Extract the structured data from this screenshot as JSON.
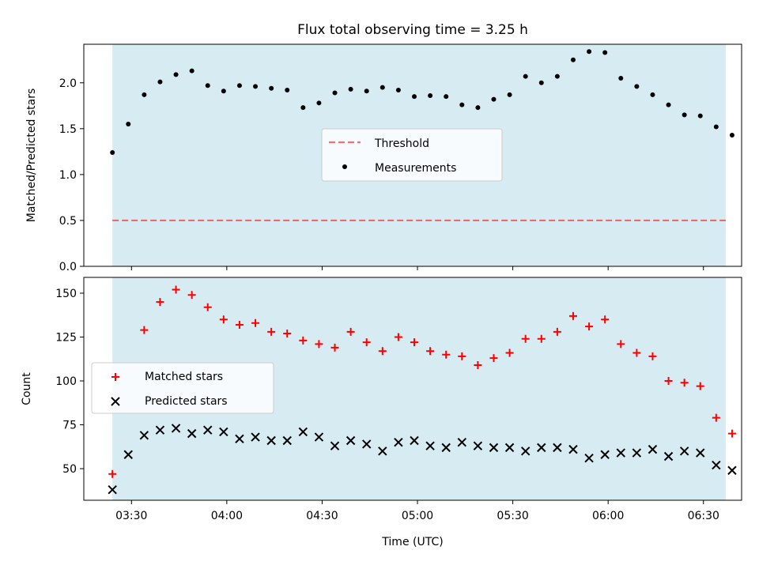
{
  "title": "Flux total observing time = 3.25 h",
  "colors": {
    "shade": "#add8e6",
    "threshold": "#ff0000",
    "measurements": "#000000",
    "matched": "#ff0000",
    "predicted": "#000000"
  },
  "x_tick_labels": [
    "03:30",
    "04:00",
    "04:30",
    "05:00",
    "05:30",
    "06:00",
    "06:30"
  ],
  "xlabel": "Time (UTC)",
  "chart_data": [
    {
      "type": "scatter",
      "ylabel": "Matched/Predicted stars",
      "ylim": [
        0,
        2.42
      ],
      "y_ticks": [
        "0.0",
        "0.5",
        "1.0",
        "1.5",
        "2.0"
      ],
      "y_tick_values": [
        0,
        0.5,
        1.0,
        1.5,
        2.0
      ],
      "xlim": [
        "03:15",
        "06:42"
      ],
      "shaded_span": [
        "03:24",
        "06:37"
      ],
      "legend_position": "center",
      "series": [
        {
          "name": "Threshold",
          "style": "dashed-line",
          "x": [
            "03:24",
            "06:37"
          ],
          "values": [
            0.5,
            0.5
          ]
        },
        {
          "name": "Measurements",
          "style": "dot",
          "x": [
            "03:24",
            "03:29",
            "03:34",
            "03:39",
            "03:44",
            "03:49",
            "03:54",
            "03:59",
            "04:04",
            "04:09",
            "04:14",
            "04:19",
            "04:24",
            "04:29",
            "04:34",
            "04:39",
            "04:44",
            "04:49",
            "04:54",
            "04:59",
            "05:04",
            "05:09",
            "05:14",
            "05:19",
            "05:24",
            "05:29",
            "05:34",
            "05:39",
            "05:44",
            "05:49",
            "05:54",
            "05:59",
            "06:04",
            "06:09",
            "06:14",
            "06:19",
            "06:24",
            "06:29",
            "06:34",
            "06:39"
          ],
          "values": [
            1.24,
            1.55,
            1.87,
            2.01,
            2.09,
            2.13,
            1.97,
            1.91,
            1.97,
            1.96,
            1.94,
            1.92,
            1.73,
            1.78,
            1.89,
            1.93,
            1.91,
            1.95,
            1.92,
            1.85,
            1.86,
            1.85,
            1.76,
            1.73,
            1.82,
            1.87,
            2.07,
            2.0,
            2.07,
            2.25,
            2.34,
            2.33,
            2.05,
            1.96,
            1.87,
            1.76,
            1.65,
            1.64,
            1.52,
            1.43
          ]
        }
      ]
    },
    {
      "type": "scatter",
      "ylabel": "Count",
      "ylim": [
        32,
        159
      ],
      "y_ticks": [
        "50",
        "75",
        "100",
        "125",
        "150"
      ],
      "y_tick_values": [
        50,
        75,
        100,
        125,
        150
      ],
      "xlim": [
        "03:15",
        "06:42"
      ],
      "shaded_span": [
        "03:24",
        "06:37"
      ],
      "legend_position": "center-left",
      "series": [
        {
          "name": "Matched stars",
          "style": "plus",
          "x": [
            "03:24",
            "03:29",
            "03:34",
            "03:39",
            "03:44",
            "03:49",
            "03:54",
            "03:59",
            "04:04",
            "04:09",
            "04:14",
            "04:19",
            "04:24",
            "04:29",
            "04:34",
            "04:39",
            "04:44",
            "04:49",
            "04:54",
            "04:59",
            "05:04",
            "05:09",
            "05:14",
            "05:19",
            "05:24",
            "05:29",
            "05:34",
            "05:39",
            "05:44",
            "05:49",
            "05:54",
            "05:59",
            "06:04",
            "06:09",
            "06:14",
            "06:19",
            "06:24",
            "06:29",
            "06:34",
            "06:39"
          ],
          "values": [
            47,
            null,
            129,
            145,
            152,
            149,
            142,
            135,
            132,
            133,
            128,
            127,
            123,
            121,
            119,
            128,
            122,
            117,
            125,
            122,
            117,
            115,
            114,
            109,
            113,
            116,
            124,
            124,
            128,
            137,
            131,
            135,
            121,
            116,
            114,
            100,
            99,
            97,
            79,
            70
          ]
        },
        {
          "name": "Predicted stars",
          "style": "x",
          "x": [
            "03:24",
            "03:29",
            "03:34",
            "03:39",
            "03:44",
            "03:49",
            "03:54",
            "03:59",
            "04:04",
            "04:09",
            "04:14",
            "04:19",
            "04:24",
            "04:29",
            "04:34",
            "04:39",
            "04:44",
            "04:49",
            "04:54",
            "04:59",
            "05:04",
            "05:09",
            "05:14",
            "05:19",
            "05:24",
            "05:29",
            "05:34",
            "05:39",
            "05:44",
            "05:49",
            "05:54",
            "05:59",
            "06:04",
            "06:09",
            "06:14",
            "06:19",
            "06:24",
            "06:29",
            "06:34",
            "06:39"
          ],
          "values": [
            38,
            58,
            69,
            72,
            73,
            70,
            72,
            71,
            67,
            68,
            66,
            66,
            71,
            68,
            63,
            66,
            64,
            60,
            65,
            66,
            63,
            62,
            65,
            63,
            62,
            62,
            60,
            62,
            62,
            61,
            56,
            58,
            59,
            59,
            61,
            57,
            60,
            59,
            52,
            49
          ]
        }
      ]
    }
  ]
}
